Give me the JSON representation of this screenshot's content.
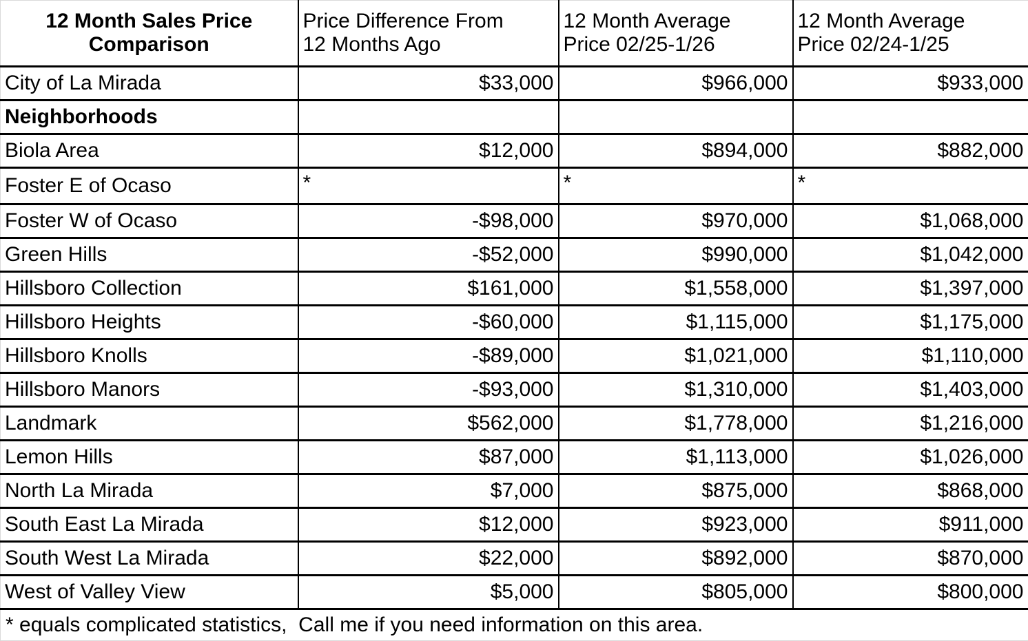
{
  "table": {
    "header": {
      "col1": {
        "line1": "12 Month Sales Price",
        "line2": "Comparison"
      },
      "col2": {
        "line1": "Price Difference From",
        "line2": "12 Months Ago"
      },
      "col3": {
        "line1": "12 Month Average",
        "line2": "Price 02/25-1/26"
      },
      "col4": {
        "line1": "12 Month Average",
        "line2": "Price 02/24-1/25"
      }
    },
    "rows": [
      {
        "label": "City of La Mirada",
        "bold": false,
        "diff": "$33,000",
        "avg_2025": "$966,000",
        "avg_2024": "$933,000"
      },
      {
        "label": "Neighborhoods",
        "bold": true,
        "diff": "",
        "avg_2025": "",
        "avg_2024": ""
      },
      {
        "label": "Biola Area",
        "bold": false,
        "diff": "$12,000",
        "avg_2025": "$894,000",
        "avg_2024": "$882,000"
      },
      {
        "label": "Foster E of Ocaso",
        "bold": false,
        "diff": "*",
        "avg_2025": "*",
        "avg_2024": "*"
      },
      {
        "label": "Foster W of Ocaso",
        "bold": false,
        "diff": "-$98,000",
        "avg_2025": "$970,000",
        "avg_2024": "$1,068,000"
      },
      {
        "label": "Green Hills",
        "bold": false,
        "diff": "-$52,000",
        "avg_2025": "$990,000",
        "avg_2024": "$1,042,000"
      },
      {
        "label": "Hillsboro Collection",
        "bold": false,
        "diff": "$161,000",
        "avg_2025": "$1,558,000",
        "avg_2024": "$1,397,000"
      },
      {
        "label": "Hillsboro Heights",
        "bold": false,
        "diff": "-$60,000",
        "avg_2025": "$1,115,000",
        "avg_2024": "$1,175,000"
      },
      {
        "label": "Hillsboro Knolls",
        "bold": false,
        "diff": "-$89,000",
        "avg_2025": "$1,021,000",
        "avg_2024": "$1,110,000"
      },
      {
        "label": "Hillsboro Manors",
        "bold": false,
        "diff": "-$93,000",
        "avg_2025": "$1,310,000",
        "avg_2024": "$1,403,000"
      },
      {
        "label": "Landmark",
        "bold": false,
        "diff": "$562,000",
        "avg_2025": "$1,778,000",
        "avg_2024": "$1,216,000"
      },
      {
        "label": "Lemon Hills",
        "bold": false,
        "diff": "$87,000",
        "avg_2025": "$1,113,000",
        "avg_2024": "$1,026,000"
      },
      {
        "label": "North La Mirada",
        "bold": false,
        "diff": "$7,000",
        "avg_2025": "$875,000",
        "avg_2024": "$868,000"
      },
      {
        "label": "South East La Mirada",
        "bold": false,
        "diff": "$12,000",
        "avg_2025": "$923,000",
        "avg_2024": "$911,000"
      },
      {
        "label": "South West La Mirada",
        "bold": false,
        "diff": "$22,000",
        "avg_2025": "$892,000",
        "avg_2024": "$870,000"
      },
      {
        "label": "West of Valley View",
        "bold": false,
        "diff": "$5,000",
        "avg_2025": "$805,000",
        "avg_2024": "$800,000"
      }
    ],
    "footnote": "* equals complicated statistics,  Call me if you need information on this area."
  },
  "colors": {
    "text": "#000000",
    "background": "#ffffff",
    "grid_border": "#000000",
    "edge_gridline": "#d9d9d9"
  }
}
